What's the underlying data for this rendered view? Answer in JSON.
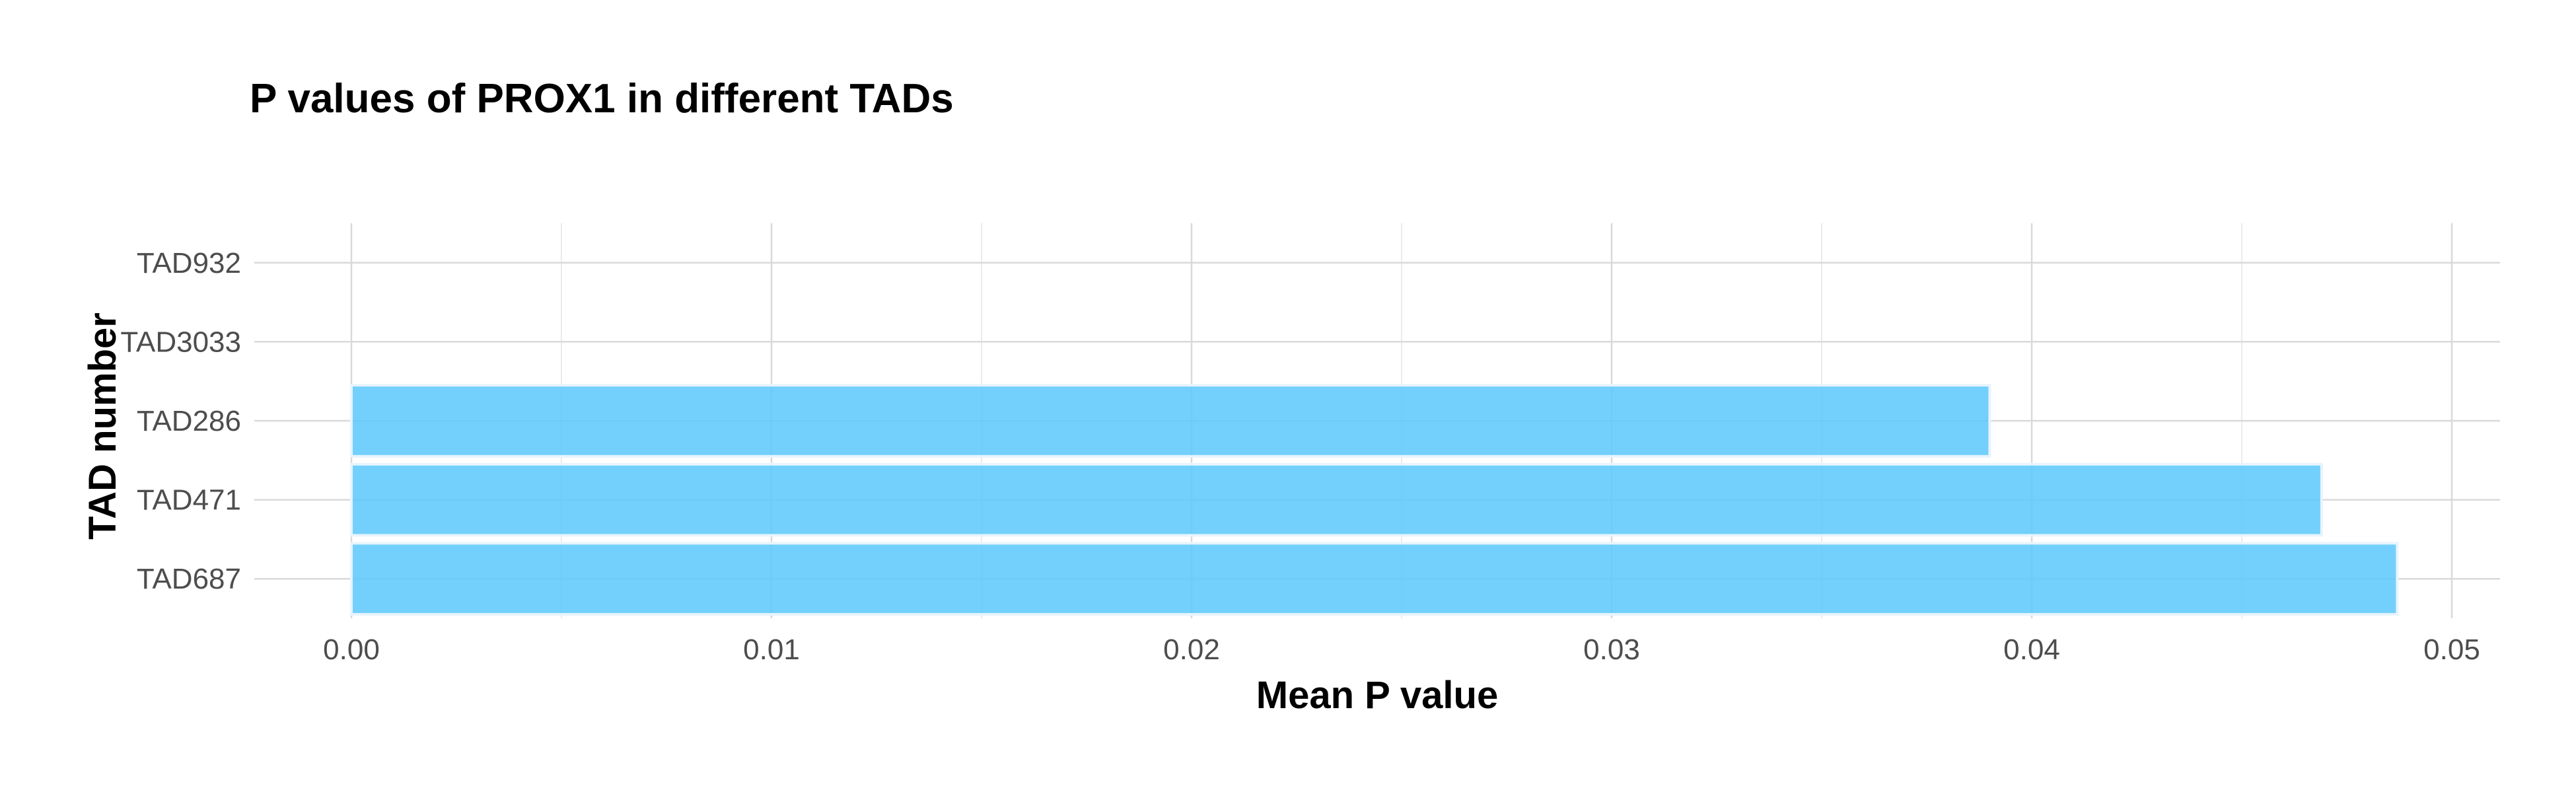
{
  "chart_data": {
    "type": "bar",
    "orientation": "horizontal",
    "title": "P values of PROX1 in different TADs",
    "xlabel": "Mean P value",
    "ylabel": "TAD number",
    "categories": [
      "TAD932",
      "TAD3033",
      "TAD286",
      "TAD471",
      "TAD687"
    ],
    "values": [
      0,
      0,
      0.039,
      0.0469,
      0.0487
    ],
    "xlim": [
      0,
      0.051
    ],
    "xticks": [
      0,
      0.01,
      0.02,
      0.03,
      0.04,
      0.05
    ],
    "xtick_labels": [
      "0.00",
      "0.01",
      "0.02",
      "0.03",
      "0.04",
      "0.05"
    ],
    "grid": true,
    "bar_color": "#5bc8fb",
    "bar_outline": "#e8f4fc",
    "grid_color": "#d9d9d9"
  }
}
